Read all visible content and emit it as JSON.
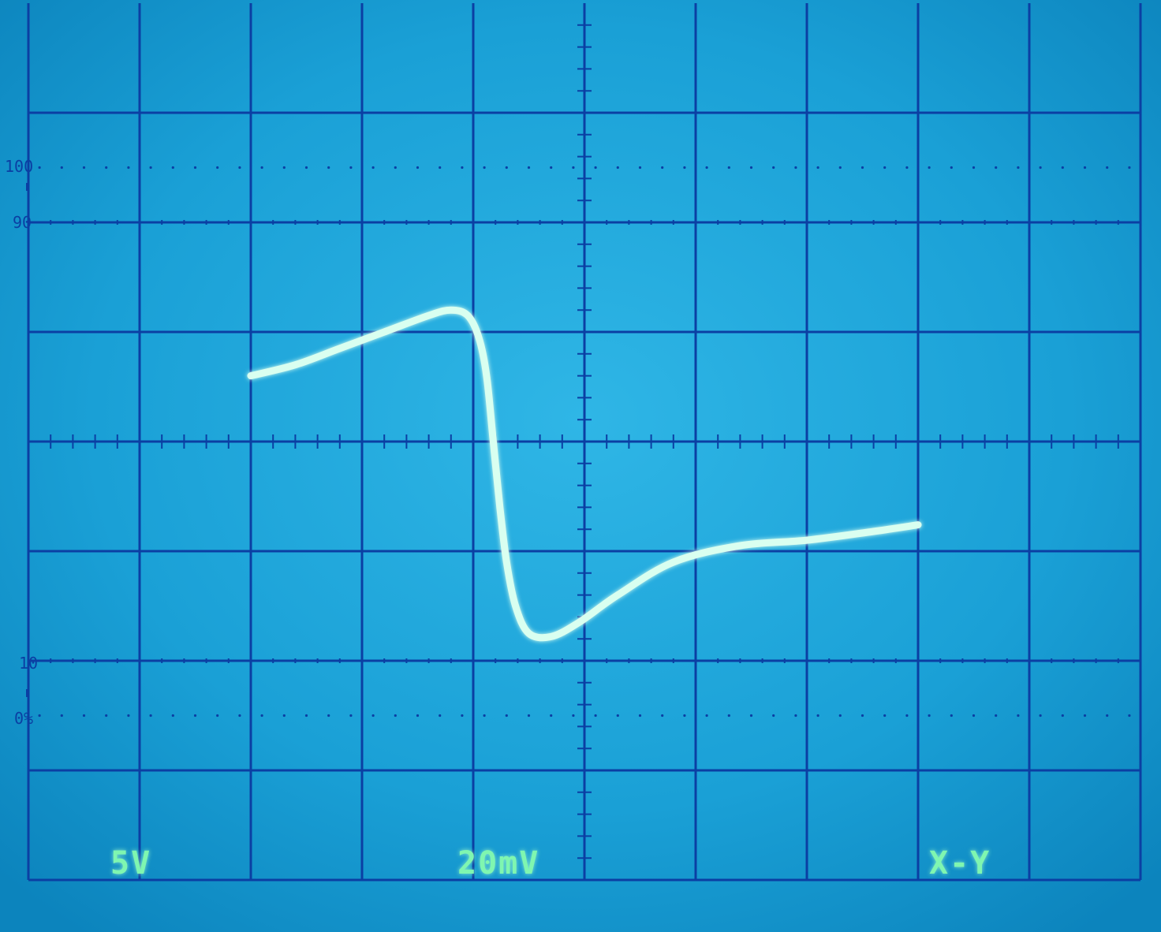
{
  "screen": {
    "background_color": "#1ba3d6",
    "grid_color": "#0b3fa3",
    "trace_color": "#d9fff0",
    "readout_color": "#7ff6b0"
  },
  "graticule": {
    "major_columns": 10,
    "major_rows": 8,
    "minor_divisions_per_major": 5
  },
  "percent_marks": {
    "top_100": "100",
    "top_90": "90",
    "bottom_10": "10",
    "bottom_0": "0%"
  },
  "readouts": {
    "ch1_scale": "5V",
    "ch2_scale": "20mV",
    "mode": "X-Y"
  },
  "trace": {
    "description_units": "divisions from center (x right, y up)",
    "points_div": [
      [
        -3.0,
        0.6
      ],
      [
        -2.6,
        0.7
      ],
      [
        -2.2,
        0.85
      ],
      [
        -1.8,
        1.0
      ],
      [
        -1.4,
        1.15
      ],
      [
        -1.2,
        1.2
      ],
      [
        -1.05,
        1.15
      ],
      [
        -0.95,
        0.95
      ],
      [
        -0.88,
        0.6
      ],
      [
        -0.82,
        0.0
      ],
      [
        -0.76,
        -0.6
      ],
      [
        -0.7,
        -1.1
      ],
      [
        -0.62,
        -1.5
      ],
      [
        -0.5,
        -1.75
      ],
      [
        -0.3,
        -1.78
      ],
      [
        -0.05,
        -1.65
      ],
      [
        0.3,
        -1.4
      ],
      [
        0.8,
        -1.1
      ],
      [
        1.4,
        -0.95
      ],
      [
        2.0,
        -0.9
      ],
      [
        2.6,
        -0.82
      ],
      [
        3.0,
        -0.76
      ]
    ]
  }
}
